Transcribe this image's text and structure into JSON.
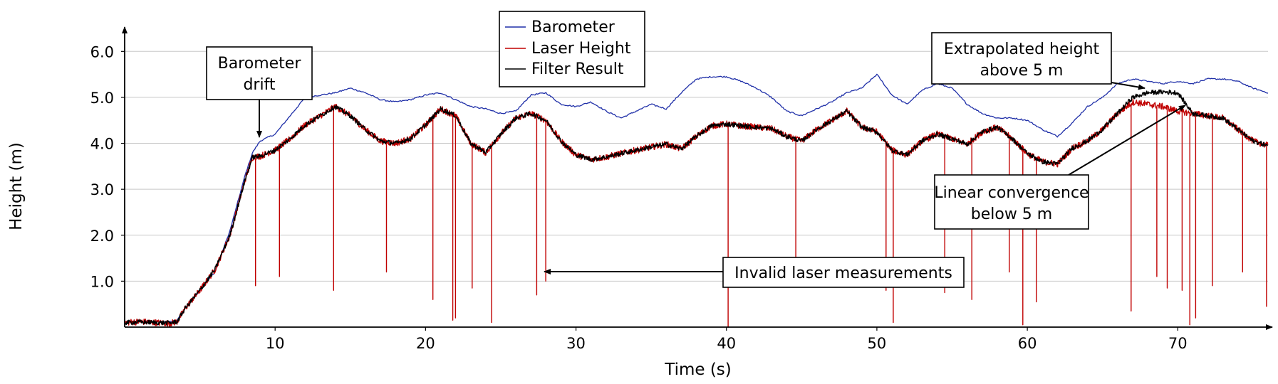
{
  "chart_data": {
    "type": "line",
    "xlabel": "Time (s)",
    "ylabel": "Height (m)",
    "xlim": [
      0,
      76
    ],
    "ylim": [
      0,
      6.5
    ],
    "x_ticks": [
      10,
      20,
      30,
      40,
      50,
      60,
      70
    ],
    "x_tick_labels": [
      "10",
      "20",
      "30",
      "40",
      "50",
      "60",
      "70"
    ],
    "y_ticks": [
      1,
      2,
      3,
      4,
      5,
      6
    ],
    "y_tick_labels": [
      "1.0",
      "2.0",
      "3.0",
      "4.0",
      "5.0",
      "6.0"
    ],
    "grid": "horizontal",
    "legend_position": "top-center",
    "series": [
      {
        "name": "Barometer",
        "color": "#1f2fa8",
        "x": [
          0,
          1,
          2,
          3,
          3.5,
          4,
          5,
          6,
          7,
          8,
          8.5,
          9,
          10,
          11,
          12,
          13,
          14,
          15,
          16,
          17,
          18,
          19,
          20,
          21,
          22,
          23,
          24,
          25,
          26,
          27,
          28,
          29,
          30,
          31,
          32,
          33,
          34,
          35,
          36,
          37,
          38,
          39,
          40,
          41,
          42,
          43,
          44,
          45,
          46,
          47,
          48,
          49,
          50,
          51,
          52,
          53,
          54,
          55,
          56,
          57,
          58,
          59,
          60,
          61,
          62,
          63,
          64,
          65,
          66,
          67,
          68,
          69,
          70,
          71,
          72,
          73,
          74,
          75,
          76
        ],
        "y": [
          0.12,
          0.12,
          0.12,
          0.12,
          0.15,
          0.4,
          0.8,
          1.2,
          2.1,
          3.3,
          3.8,
          4.05,
          4.2,
          4.6,
          5.0,
          5.05,
          5.1,
          5.2,
          5.1,
          4.95,
          4.9,
          4.95,
          5.05,
          5.1,
          4.95,
          4.8,
          4.75,
          4.65,
          4.7,
          5.05,
          5.1,
          4.85,
          4.8,
          4.9,
          4.7,
          4.55,
          4.7,
          4.85,
          4.75,
          5.1,
          5.4,
          5.45,
          5.45,
          5.35,
          5.2,
          5.0,
          4.7,
          4.6,
          4.75,
          4.9,
          5.1,
          5.2,
          5.5,
          5.05,
          4.85,
          5.15,
          5.3,
          5.2,
          4.85,
          4.65,
          4.55,
          4.55,
          4.5,
          4.3,
          4.15,
          4.45,
          4.8,
          5.0,
          5.3,
          5.4,
          5.35,
          5.3,
          5.35,
          5.3,
          5.4,
          5.4,
          5.35,
          5.2,
          5.1
        ]
      },
      {
        "name": "Laser Height",
        "color": "#c00000",
        "x": [
          0,
          1,
          2,
          3,
          3.5,
          4,
          5,
          6,
          7,
          8,
          8.5,
          9,
          10,
          11,
          12,
          13,
          14,
          15,
          16,
          17,
          18,
          19,
          20,
          21,
          22,
          23,
          24,
          25,
          26,
          27,
          28,
          29,
          30,
          31,
          32,
          33,
          34,
          35,
          36,
          37,
          38,
          39,
          40,
          41,
          42,
          43,
          44,
          45,
          46,
          47,
          48,
          49,
          50,
          51,
          52,
          53,
          54,
          55,
          56,
          57,
          58,
          59,
          60,
          61,
          62,
          63,
          64,
          65,
          66,
          67,
          68,
          69,
          70,
          71,
          72,
          73,
          74,
          75,
          76
        ],
        "y": [
          0.1,
          0.12,
          0.1,
          0.08,
          0.12,
          0.4,
          0.8,
          1.25,
          2.0,
          3.2,
          3.7,
          3.72,
          3.85,
          4.1,
          4.4,
          4.6,
          4.8,
          4.6,
          4.3,
          4.05,
          4.0,
          4.1,
          4.4,
          4.75,
          4.6,
          4.0,
          3.8,
          4.2,
          4.55,
          4.65,
          4.5,
          4.05,
          3.75,
          3.65,
          3.7,
          3.78,
          3.85,
          3.92,
          3.98,
          3.88,
          4.15,
          4.38,
          4.42,
          4.38,
          4.35,
          4.32,
          4.15,
          4.05,
          4.3,
          4.5,
          4.7,
          4.35,
          4.25,
          3.85,
          3.75,
          4.05,
          4.2,
          4.1,
          3.98,
          4.25,
          4.35,
          4.1,
          3.78,
          3.6,
          3.55,
          3.9,
          4.05,
          4.3,
          4.65,
          4.9,
          4.85,
          4.8,
          4.7,
          4.65,
          4.6,
          4.55,
          4.3,
          4.05,
          3.95
        ]
      },
      {
        "name": "Filter Result",
        "color": "#000000",
        "x": [
          0,
          1,
          2,
          3,
          3.5,
          4,
          5,
          6,
          7,
          8,
          8.5,
          9,
          10,
          11,
          12,
          13,
          14,
          15,
          16,
          17,
          18,
          19,
          20,
          21,
          22,
          23,
          24,
          25,
          26,
          27,
          28,
          29,
          30,
          31,
          32,
          33,
          34,
          35,
          36,
          37,
          38,
          39,
          40,
          41,
          42,
          43,
          44,
          45,
          46,
          47,
          48,
          49,
          50,
          51,
          52,
          53,
          54,
          55,
          56,
          57,
          58,
          59,
          60,
          61,
          62,
          63,
          64,
          65,
          66,
          67,
          68,
          69,
          70,
          71,
          72,
          73,
          74,
          75,
          76
        ],
        "y": [
          0.1,
          0.11,
          0.1,
          0.09,
          0.12,
          0.4,
          0.8,
          1.25,
          2.0,
          3.2,
          3.7,
          3.72,
          3.85,
          4.1,
          4.4,
          4.6,
          4.8,
          4.6,
          4.3,
          4.05,
          4.0,
          4.1,
          4.4,
          4.75,
          4.6,
          4.0,
          3.8,
          4.2,
          4.55,
          4.65,
          4.5,
          4.05,
          3.75,
          3.65,
          3.7,
          3.78,
          3.85,
          3.92,
          3.98,
          3.88,
          4.15,
          4.38,
          4.42,
          4.38,
          4.35,
          4.32,
          4.15,
          4.05,
          4.3,
          4.5,
          4.7,
          4.35,
          4.25,
          3.85,
          3.75,
          4.05,
          4.2,
          4.1,
          3.98,
          4.25,
          4.35,
          4.1,
          3.78,
          3.6,
          3.55,
          3.9,
          4.05,
          4.3,
          4.65,
          5.0,
          5.1,
          5.12,
          5.1,
          4.65,
          4.6,
          4.55,
          4.3,
          4.05,
          3.95
        ]
      }
    ],
    "dropouts": [
      {
        "x": 8.7,
        "y": 0.9
      },
      {
        "x": 10.3,
        "y": 1.1
      },
      {
        "x": 13.9,
        "y": 0.8
      },
      {
        "x": 17.4,
        "y": 1.2
      },
      {
        "x": 20.5,
        "y": 0.6
      },
      {
        "x": 21.8,
        "y": 0.15
      },
      {
        "x": 22.0,
        "y": 0.2
      },
      {
        "x": 23.1,
        "y": 0.85
      },
      {
        "x": 24.4,
        "y": 0.1
      },
      {
        "x": 27.4,
        "y": 0.7
      },
      {
        "x": 28.0,
        "y": 1.0
      },
      {
        "x": 40.1,
        "y": 0.0
      },
      {
        "x": 44.6,
        "y": 0.9
      },
      {
        "x": 50.6,
        "y": 0.8
      },
      {
        "x": 51.1,
        "y": 0.1
      },
      {
        "x": 54.5,
        "y": 0.75
      },
      {
        "x": 56.3,
        "y": 0.6
      },
      {
        "x": 58.8,
        "y": 1.2
      },
      {
        "x": 59.7,
        "y": 0.05
      },
      {
        "x": 60.6,
        "y": 0.55
      },
      {
        "x": 66.9,
        "y": 0.35
      },
      {
        "x": 68.6,
        "y": 1.1
      },
      {
        "x": 69.3,
        "y": 0.85
      },
      {
        "x": 70.3,
        "y": 0.8
      },
      {
        "x": 70.8,
        "y": 0.05
      },
      {
        "x": 71.2,
        "y": 0.2
      },
      {
        "x": 72.3,
        "y": 0.9
      },
      {
        "x": 74.3,
        "y": 1.2
      },
      {
        "x": 75.9,
        "y": 0.45
      }
    ],
    "annotations": [
      {
        "lines": [
          "Barometer",
          "drift"
        ]
      },
      {
        "lines": [
          "Invalid laser measurements"
        ]
      },
      {
        "lines": [
          "Extrapolated height",
          "above 5 m"
        ]
      },
      {
        "lines": [
          "Linear convergence",
          "below 5 m"
        ]
      }
    ]
  }
}
